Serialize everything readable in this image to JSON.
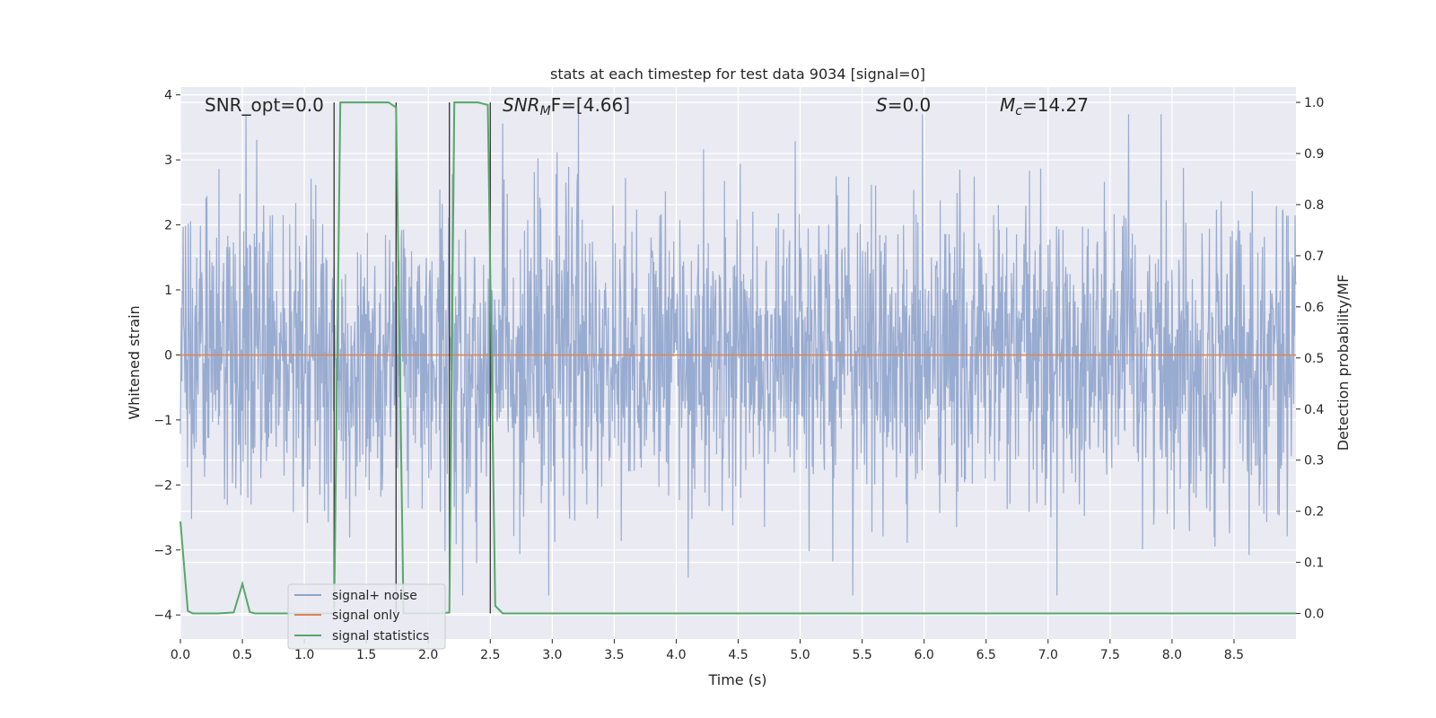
{
  "chart_data": {
    "type": "line",
    "title": "stats at each timestep for test data 9034 [signal=0]",
    "xlabel": "Time (s)",
    "ylabel": "Whitened strain",
    "y2label": "Detection probability/MF",
    "xlim": [
      0,
      9.0
    ],
    "ylim": [
      -4.37,
      4.12
    ],
    "y2lim": [
      -0.05,
      1.03
    ],
    "x_ticks": [
      "0.0",
      "0.5",
      "1.0",
      "1.5",
      "2.0",
      "2.5",
      "3.0",
      "3.5",
      "4.0",
      "4.5",
      "5.0",
      "5.5",
      "6.0",
      "6.5",
      "7.0",
      "7.5",
      "8.0",
      "8.5"
    ],
    "y_ticks": [
      "4",
      "3",
      "2",
      "1",
      "0",
      "−1",
      "−2",
      "−3",
      "−4"
    ],
    "y2_ticks": [
      "1.0",
      "0.9",
      "0.8",
      "0.7",
      "0.6",
      "0.5",
      "0.4",
      "0.3",
      "0.2",
      "0.1",
      "0.0"
    ],
    "annotations": {
      "snr_opt": "SNR_opt=0.0",
      "snr_mf_base": "SNR",
      "snr_mf_sub": "M",
      "snr_mf_rest": "F=[4.66]",
      "s_label": "S",
      "s_rest": "=0.0",
      "mc_base": "M",
      "mc_sub": "c",
      "mc_rest": "=14.27"
    },
    "legend": {
      "position": "lower-left",
      "entries": [
        "signal+ noise",
        "signal only",
        "signal statistics"
      ]
    },
    "series": [
      {
        "name": "signal+ noise",
        "color": "#8fa4cc",
        "description": "whitened noisy strain, spans roughly -3.7 to 3.7"
      },
      {
        "name": "signal only",
        "color": "#dd8452",
        "values_constant": 0.0
      },
      {
        "name": "signal statistics",
        "color": "#55a868",
        "x": [
          0.0,
          0.06,
          0.1,
          0.2,
          0.3,
          0.43,
          0.5,
          0.56,
          0.6,
          0.7,
          0.8,
          0.9,
          1.0,
          1.1,
          1.2,
          1.24,
          1.29,
          1.33,
          1.4,
          1.5,
          1.6,
          1.68,
          1.74,
          1.8,
          1.9,
          2.0,
          2.1,
          2.17,
          2.21,
          2.25,
          2.3,
          2.4,
          2.48,
          2.54,
          2.6,
          2.7,
          3.0,
          4.0,
          5.0,
          6.0,
          7.0,
          8.0,
          9.0
        ],
        "values": [
          0.18,
          0.005,
          0.0,
          0.0,
          0.0,
          0.002,
          0.058,
          0.003,
          0.0,
          0.0,
          0.0,
          0.0,
          0.0,
          0.0,
          0.0,
          0.0,
          1.0,
          1.0,
          1.0,
          1.0,
          1.0,
          1.0,
          0.99,
          0.0,
          0.0,
          0.0,
          0.0,
          0.002,
          1.0,
          1.0,
          1.0,
          1.0,
          0.995,
          0.015,
          0.0,
          0.0,
          0.0,
          0.0,
          0.0,
          0.0,
          0.0,
          0.0,
          0.0
        ]
      }
    ],
    "vlines": [
      1.24,
      1.74,
      2.17,
      2.5
    ]
  }
}
